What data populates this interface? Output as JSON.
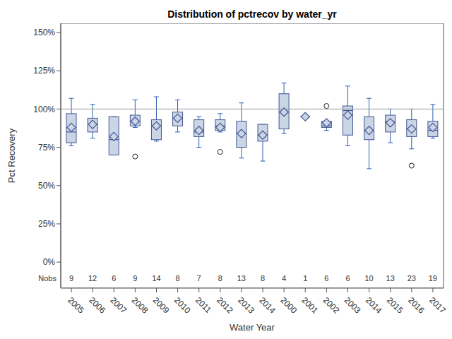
{
  "chart_data": {
    "type": "box",
    "title": "Distribution of pctrecov by water_yr",
    "x_label": "Water Year",
    "y_label": "Pct Recovery",
    "categories": [
      "2005",
      "2006",
      "2007",
      "2008",
      "2009",
      "2010",
      "2011",
      "2012",
      "2013",
      "2014",
      "2000",
      "2001",
      "2002",
      "2003",
      "2014",
      "2015",
      "2016",
      "2017"
    ],
    "min": [
      76,
      81,
      70,
      88,
      79,
      85,
      75,
      85,
      68,
      66,
      84,
      95,
      86,
      76,
      61,
      78,
      74,
      81
    ],
    "q1": [
      78,
      85,
      70,
      89,
      80,
      89,
      82,
      86,
      75,
      79,
      87,
      95,
      88,
      83,
      80,
      85,
      82,
      82
    ],
    "median": [
      85,
      90,
      80,
      92,
      89,
      94,
      85,
      89,
      84,
      83,
      98,
      95,
      89,
      99,
      86,
      92,
      87,
      86
    ],
    "q3": [
      97,
      94,
      95,
      96,
      93,
      98,
      93,
      93,
      92,
      90,
      110,
      95,
      92,
      102,
      95,
      96,
      93,
      92
    ],
    "max": [
      107,
      103,
      95,
      106,
      108,
      106,
      95,
      97,
      104,
      90,
      117,
      95,
      92,
      115,
      107,
      100,
      100,
      103
    ],
    "mean": [
      88,
      90,
      82,
      92,
      89,
      94,
      86,
      88,
      84,
      83,
      98,
      95,
      91,
      96,
      86,
      91,
      87,
      88
    ],
    "outliers": [
      [],
      [],
      [],
      [
        69
      ],
      [],
      [],
      [],
      [
        72
      ],
      [],
      [],
      [],
      [],
      [
        102
      ],
      [],
      [],
      [],
      [
        63
      ],
      []
    ],
    "nobs_label": "Nobs",
    "nobs": [
      9,
      12,
      6,
      9,
      14,
      8,
      7,
      8,
      13,
      8,
      4,
      1,
      6,
      6,
      10,
      13,
      23,
      19
    ],
    "reference_line": 100,
    "ylim": [
      -17,
      156
    ],
    "yticks": [
      {
        "value": 0,
        "label": "0%"
      },
      {
        "value": 25,
        "label": "25%"
      },
      {
        "value": 50,
        "label": "50%"
      },
      {
        "value": 75,
        "label": "75%"
      },
      {
        "value": 100,
        "label": "100%"
      },
      {
        "value": 125,
        "label": "125%"
      },
      {
        "value": 150,
        "label": "150%"
      }
    ],
    "color": "#cad5e5"
  }
}
